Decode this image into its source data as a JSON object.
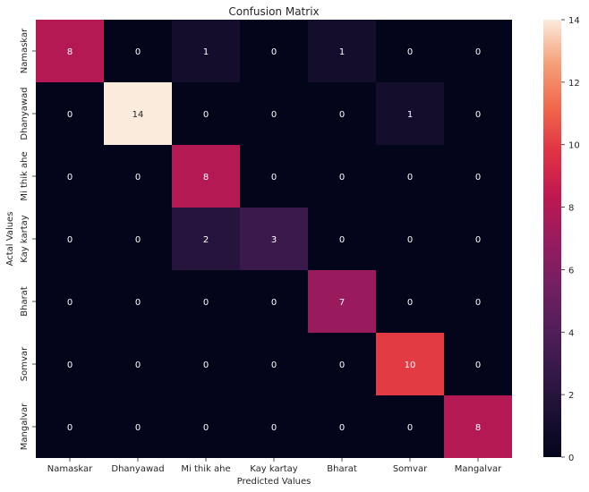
{
  "chart_data": {
    "type": "heatmap",
    "title": "Confusion Matrix",
    "xlabel": "Predicted Values",
    "ylabel": "Actal Values",
    "x_categories": [
      "Namaskar",
      "Dhanyawad",
      "Mi thik ahe",
      "Kay kartay",
      "Bharat",
      "Somvar",
      "Mangalvar"
    ],
    "y_categories": [
      "Namaskar",
      "Dhanyawad",
      "Mi thik ahe",
      "Kay kartay",
      "Bharat",
      "Somvar",
      "Mangalvar"
    ],
    "values": [
      [
        8,
        0,
        1,
        0,
        1,
        0,
        0
      ],
      [
        0,
        14,
        0,
        0,
        0,
        1,
        0
      ],
      [
        0,
        0,
        8,
        0,
        0,
        0,
        0
      ],
      [
        0,
        0,
        2,
        3,
        0,
        0,
        0
      ],
      [
        0,
        0,
        0,
        0,
        7,
        0,
        0
      ],
      [
        0,
        0,
        0,
        0,
        0,
        10,
        0
      ],
      [
        0,
        0,
        0,
        0,
        0,
        0,
        8
      ]
    ],
    "annotations": true,
    "colormap": "rocket",
    "colorbar": {
      "range": [
        0,
        14
      ],
      "ticks": [
        0,
        2,
        4,
        6,
        8,
        10,
        12,
        14
      ]
    },
    "grid": false,
    "legend": "colorbar-right"
  }
}
